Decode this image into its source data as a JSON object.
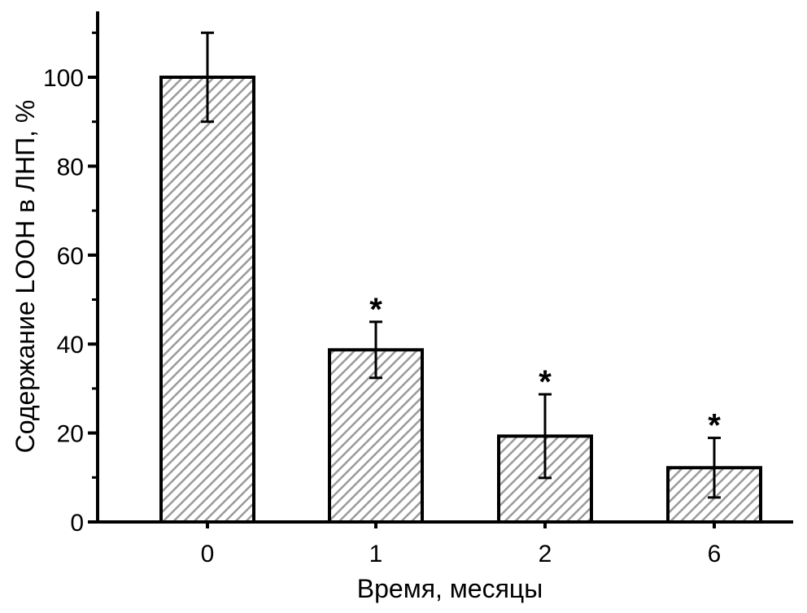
{
  "chart_data": {
    "type": "bar",
    "categories": [
      "0",
      "1",
      "2",
      "6"
    ],
    "values": [
      100,
      38.7,
      19.3,
      12.2
    ],
    "errors": [
      10,
      6.3,
      9.4,
      6.7
    ],
    "significance": [
      "",
      "*",
      "*",
      "*"
    ],
    "xlabel": "Время, месяцы",
    "ylabel": "Содержание LOOH в ЛНП, %",
    "yticks": [
      0,
      20,
      40,
      60,
      80,
      100
    ],
    "ylim": [
      0,
      115
    ],
    "grid": false,
    "bar_fill": "hatched-gray",
    "colors": {
      "bar_stroke": "#000000",
      "hatch": "#9a9a9a",
      "background": "#ffffff"
    }
  }
}
